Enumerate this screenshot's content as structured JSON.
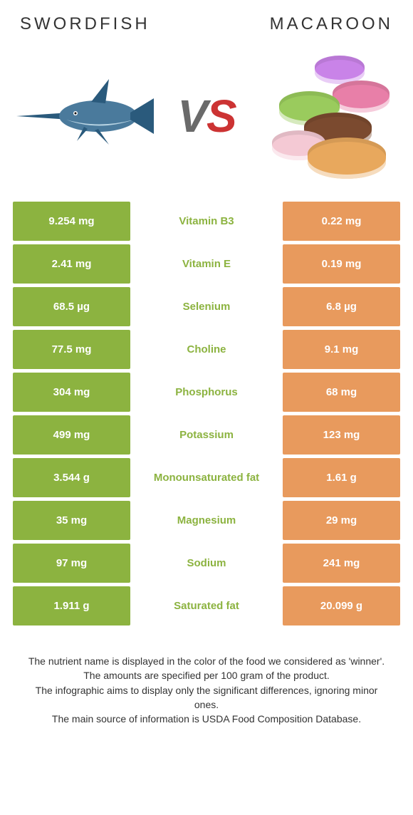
{
  "header": {
    "left_title": "Swordfish",
    "right_title": "Macaroon",
    "vs_v": "V",
    "vs_s": "S"
  },
  "colors": {
    "left_bg": "#8cb340",
    "right_bg": "#e89a5d",
    "center_winner_left": "#8cb340",
    "center_winner_right": "#e89a5d",
    "text_white": "#ffffff"
  },
  "macaroon_colors": [
    "#c983e8",
    "#e87fa8",
    "#9acb5d",
    "#7b4a2f",
    "#e8a85d",
    "#f4c9d4"
  ],
  "rows": [
    {
      "left": "9.254 mg",
      "label": "Vitamin B3",
      "right": "0.22 mg",
      "winner": "left"
    },
    {
      "left": "2.41 mg",
      "label": "Vitamin E",
      "right": "0.19 mg",
      "winner": "left"
    },
    {
      "left": "68.5 µg",
      "label": "Selenium",
      "right": "6.8 µg",
      "winner": "left"
    },
    {
      "left": "77.5 mg",
      "label": "Choline",
      "right": "9.1 mg",
      "winner": "left"
    },
    {
      "left": "304 mg",
      "label": "Phosphorus",
      "right": "68 mg",
      "winner": "left"
    },
    {
      "left": "499 mg",
      "label": "Potassium",
      "right": "123 mg",
      "winner": "left"
    },
    {
      "left": "3.544 g",
      "label": "Monounsaturated fat",
      "right": "1.61 g",
      "winner": "left"
    },
    {
      "left": "35 mg",
      "label": "Magnesium",
      "right": "29 mg",
      "winner": "left"
    },
    {
      "left": "97 mg",
      "label": "Sodium",
      "right": "241 mg",
      "winner": "left"
    },
    {
      "left": "1.911 g",
      "label": "Saturated fat",
      "right": "20.099 g",
      "winner": "left"
    }
  ],
  "footer": {
    "line1": "The nutrient name is displayed in the color of the food we considered as 'winner'.",
    "line2": "The amounts are specified per 100 gram of the product.",
    "line3": "The infographic aims to display only the significant differences, ignoring minor ones.",
    "line4": "The main source of information is USDA Food Composition Database."
  }
}
